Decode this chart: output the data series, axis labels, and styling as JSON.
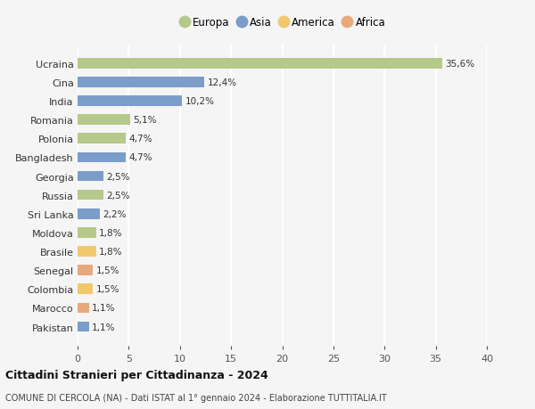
{
  "countries": [
    "Ucraina",
    "Cina",
    "India",
    "Romania",
    "Polonia",
    "Bangladesh",
    "Georgia",
    "Russia",
    "Sri Lanka",
    "Moldova",
    "Brasile",
    "Senegal",
    "Colombia",
    "Marocco",
    "Pakistan"
  ],
  "values": [
    35.6,
    12.4,
    10.2,
    5.1,
    4.7,
    4.7,
    2.5,
    2.5,
    2.2,
    1.8,
    1.8,
    1.5,
    1.5,
    1.1,
    1.1
  ],
  "labels": [
    "35,6%",
    "12,4%",
    "10,2%",
    "5,1%",
    "4,7%",
    "4,7%",
    "2,5%",
    "2,5%",
    "2,2%",
    "1,8%",
    "1,8%",
    "1,5%",
    "1,5%",
    "1,1%",
    "1,1%"
  ],
  "continents": [
    "Europa",
    "Asia",
    "Asia",
    "Europa",
    "Europa",
    "Asia",
    "Asia",
    "Europa",
    "Asia",
    "Europa",
    "America",
    "Africa",
    "America",
    "Africa",
    "Asia"
  ],
  "colors": {
    "Europa": "#b5c98a",
    "Asia": "#7b9dc9",
    "America": "#f0c96e",
    "Africa": "#e8a97a"
  },
  "legend_order": [
    "Europa",
    "Asia",
    "America",
    "Africa"
  ],
  "xlim": [
    0,
    40
  ],
  "xticks": [
    0,
    5,
    10,
    15,
    20,
    25,
    30,
    35,
    40
  ],
  "title": "Cittadini Stranieri per Cittadinanza - 2024",
  "subtitle": "COMUNE DI CERCOLA (NA) - Dati ISTAT al 1° gennaio 2024 - Elaborazione TUTTITALIA.IT",
  "bg_color": "#f5f5f5",
  "grid_color": "#ffffff",
  "bar_height": 0.55
}
